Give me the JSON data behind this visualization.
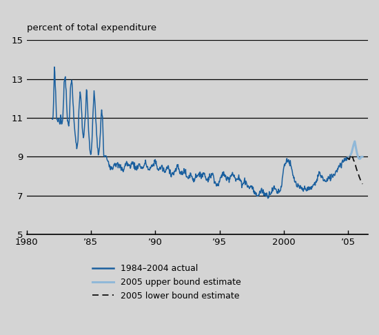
{
  "title": "percent of total expenditure",
  "xlim": [
    1980,
    2006.5
  ],
  "ylim": [
    5,
    15
  ],
  "yticks": [
    5,
    7,
    9,
    11,
    13,
    15
  ],
  "xtick_positions": [
    1980,
    1985,
    1990,
    1995,
    2000,
    2005
  ],
  "xtick_labels": [
    "1980",
    "’85",
    "’90",
    "’95",
    "2000",
    "’05"
  ],
  "bg_color": "#d4d4d4",
  "actual_color": "#1a5f9e",
  "upper_color": "#90b8d8",
  "lower_color": "#111111",
  "legend_items": [
    {
      "label": "1984–2004 actual",
      "color": "#1a5f9e",
      "linestyle": "solid"
    },
    {
      "label": "2005 upper bound estimate",
      "color": "#90b8d8",
      "linestyle": "solid"
    },
    {
      "label": "2005 lower bound estimate",
      "color": "#111111",
      "linestyle": "dashed"
    }
  ],
  "key_times": [
    1982.0,
    1982.08,
    1982.17,
    1982.25,
    1982.33,
    1982.42,
    1982.5,
    1982.58,
    1982.67,
    1982.75,
    1982.83,
    1982.92,
    1983.0,
    1983.08,
    1983.17,
    1983.25,
    1983.33,
    1983.42,
    1983.5,
    1983.58,
    1983.67,
    1983.75,
    1983.83,
    1983.92,
    1984.0,
    1984.08,
    1984.17,
    1984.25,
    1984.33,
    1984.42,
    1984.5,
    1984.58,
    1984.67,
    1984.75,
    1984.83,
    1984.92,
    1985.0,
    1985.08,
    1985.17,
    1985.25,
    1985.33,
    1985.42,
    1985.5,
    1985.58,
    1985.67,
    1985.75,
    1985.83,
    1985.92,
    1986.0,
    1986.17,
    1986.33,
    1986.5,
    1986.67,
    1986.83,
    1987.0,
    1987.25,
    1987.5,
    1987.75,
    1988.0,
    1988.25,
    1988.5,
    1988.75,
    1989.0,
    1989.25,
    1989.5,
    1989.75,
    1990.0,
    1990.25,
    1990.5,
    1990.75,
    1991.0,
    1991.25,
    1991.5,
    1991.75,
    1992.0,
    1992.25,
    1992.5,
    1992.75,
    1993.0,
    1993.25,
    1993.5,
    1993.75,
    1994.0,
    1994.25,
    1994.5,
    1994.75,
    1995.0,
    1995.25,
    1995.5,
    1995.75,
    1996.0,
    1996.25,
    1996.5,
    1996.75,
    1997.0,
    1997.25,
    1997.5,
    1997.75,
    1998.0,
    1998.25,
    1998.5,
    1998.75,
    1999.0,
    1999.25,
    1999.5,
    1999.75,
    2000.0,
    2000.25,
    2000.5,
    2000.75,
    2001.0,
    2001.25,
    2001.5,
    2001.75,
    2002.0,
    2002.25,
    2002.5,
    2002.75,
    2003.0,
    2003.25,
    2003.5,
    2003.75,
    2004.0,
    2004.25,
    2004.5,
    2004.75,
    2004.92
  ],
  "key_values": [
    10.8,
    11.2,
    13.8,
    12.5,
    11.0,
    10.8,
    11.1,
    10.6,
    11.1,
    10.5,
    11.2,
    12.8,
    13.2,
    12.4,
    11.0,
    10.5,
    10.8,
    12.8,
    13.0,
    12.2,
    11.0,
    10.3,
    9.9,
    9.3,
    10.0,
    11.5,
    12.5,
    11.8,
    10.5,
    9.8,
    10.5,
    11.2,
    12.6,
    11.5,
    10.2,
    9.3,
    9.0,
    9.8,
    11.2,
    12.5,
    11.6,
    10.5,
    9.5,
    9.1,
    9.4,
    10.5,
    11.5,
    10.8,
    9.0,
    9.0,
    8.8,
    8.5,
    8.4,
    8.7,
    8.6,
    8.5,
    8.3,
    8.7,
    8.5,
    8.7,
    8.4,
    8.6,
    8.4,
    8.7,
    8.3,
    8.5,
    8.8,
    8.3,
    8.5,
    8.2,
    8.5,
    8.1,
    8.2,
    8.5,
    8.1,
    8.3,
    7.9,
    8.1,
    7.8,
    8.1,
    8.0,
    8.2,
    7.8,
    8.0,
    8.1,
    7.5,
    7.7,
    8.2,
    7.9,
    7.9,
    8.2,
    7.8,
    7.9,
    7.6,
    7.8,
    7.4,
    7.5,
    7.1,
    7.0,
    7.3,
    7.1,
    7.0,
    7.2,
    7.4,
    7.2,
    7.3,
    8.5,
    8.9,
    8.6,
    7.9,
    7.5,
    7.4,
    7.3,
    7.4,
    7.3,
    7.5,
    7.7,
    8.2,
    7.9,
    7.7,
    7.9,
    8.0,
    8.2,
    8.5,
    8.7,
    8.9,
    8.95
  ],
  "upper_key_t": [
    2004.92,
    2005.0,
    2005.1,
    2005.25,
    2005.4,
    2005.5,
    2005.58,
    2005.67,
    2005.75,
    2005.83,
    2005.92,
    2006.0,
    2006.1
  ],
  "upper_key_v": [
    8.95,
    8.9,
    9.0,
    9.2,
    9.6,
    9.8,
    9.5,
    9.2,
    9.0,
    8.9,
    8.9,
    9.0,
    9.0
  ],
  "lower_key_t": [
    2004.92,
    2005.0,
    2005.08,
    2005.17,
    2005.25,
    2005.33,
    2005.42,
    2005.5,
    2005.58,
    2005.67,
    2005.75,
    2005.83,
    2005.92,
    2006.0,
    2006.1
  ],
  "lower_key_v": [
    8.95,
    8.9,
    8.85,
    9.1,
    8.95,
    9.0,
    8.8,
    8.75,
    8.5,
    8.3,
    8.2,
    8.0,
    7.85,
    7.7,
    7.6
  ]
}
